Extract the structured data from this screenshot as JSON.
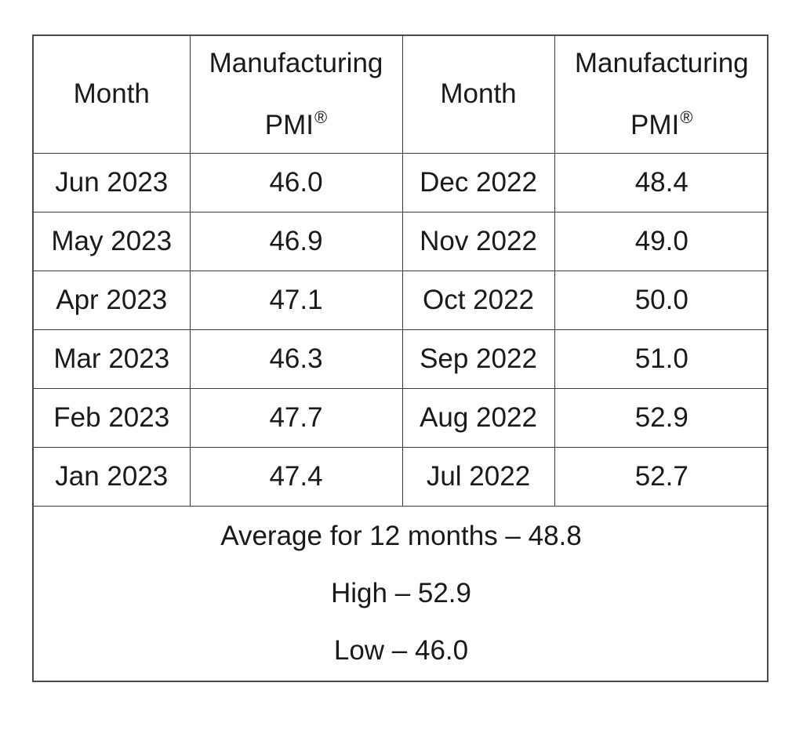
{
  "headers": {
    "month": "Month",
    "pmi_line1": "Manufacturing",
    "pmi_line2": "PMI",
    "pmi_mark": "®"
  },
  "rows": [
    {
      "left_month": "Jun 2023",
      "left_value": "46.0",
      "right_month": "Dec 2022",
      "right_value": "48.4"
    },
    {
      "left_month": "May 2023",
      "left_value": "46.9",
      "right_month": "Nov 2022",
      "right_value": "49.0"
    },
    {
      "left_month": "Apr 2023",
      "left_value": "47.1",
      "right_month": "Oct 2022",
      "right_value": "50.0"
    },
    {
      "left_month": "Mar 2023",
      "left_value": "46.3",
      "right_month": "Sep 2022",
      "right_value": "51.0"
    },
    {
      "left_month": "Feb 2023",
      "left_value": "47.7",
      "right_month": "Aug 2022",
      "right_value": "52.9"
    },
    {
      "left_month": "Jan 2023",
      "left_value": "47.4",
      "right_month": "Jul 2022",
      "right_value": "52.7"
    }
  ],
  "summary": {
    "average": "Average for 12 months – 48.8",
    "high": "High – 52.9",
    "low": "Low – 46.0"
  }
}
